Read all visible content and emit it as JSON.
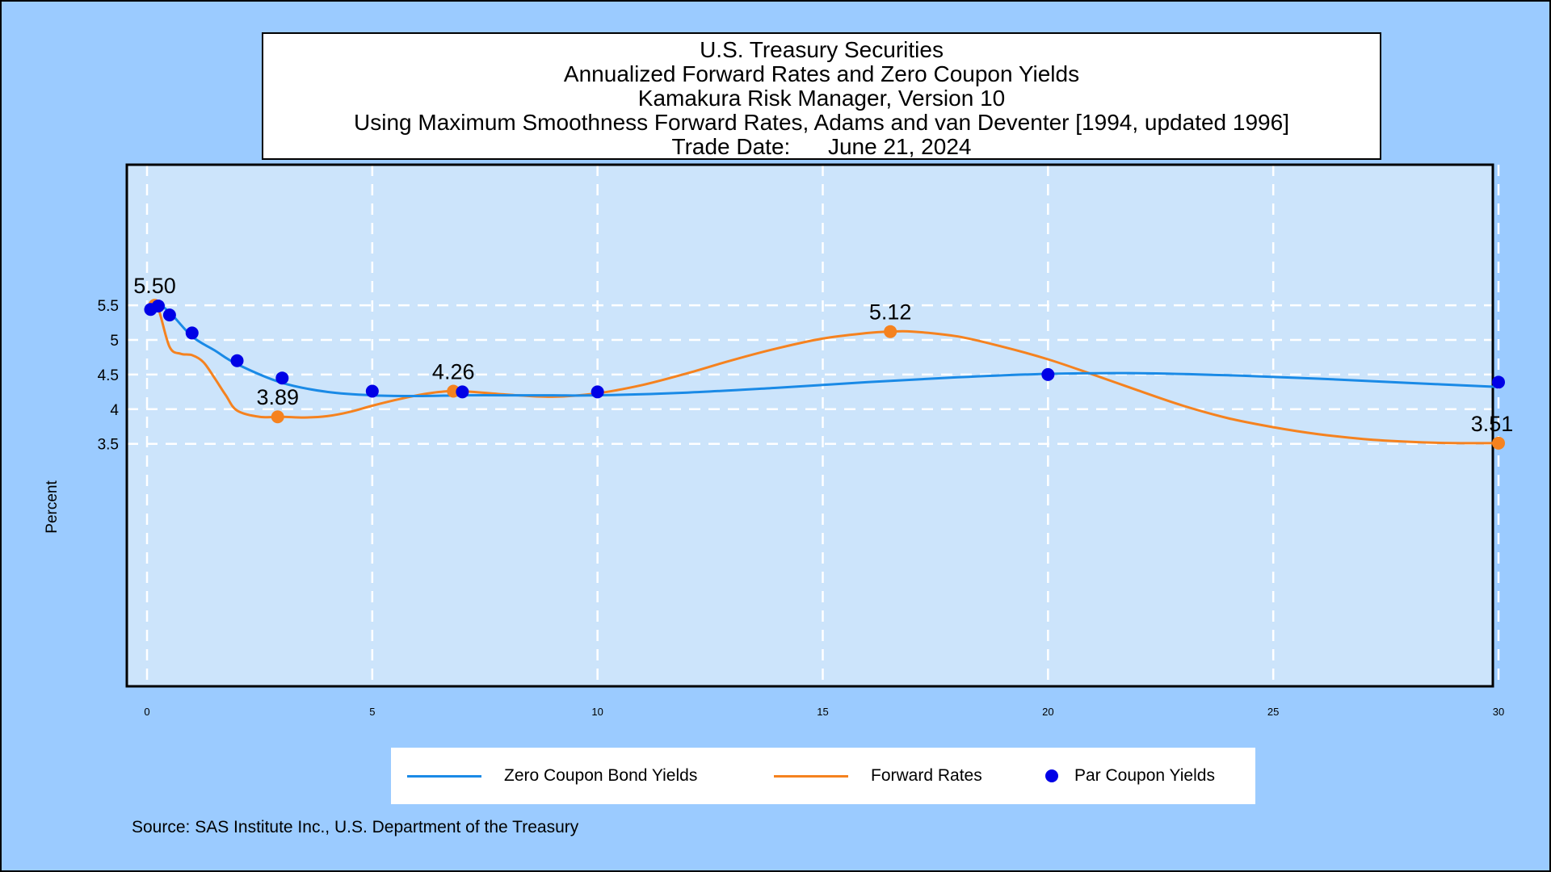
{
  "title_lines": [
    "U.S. Treasury Securities",
    "Annualized Forward Rates and Zero Coupon Yields",
    "Kamakura Risk Manager, Version 10",
    "Using Maximum Smoothness Forward Rates, Adams and van Deventer [1994, updated 1996]",
    "Trade Date:      June 21, 2024"
  ],
  "source": "Source: SAS Institute Inc., U.S. Department of the Treasury",
  "colors": {
    "background": "#9bcbff",
    "plot_area": "#cce4fb",
    "zero_coupon": "#1a8ae6",
    "forward": "#f5821f",
    "par": "#0000e6",
    "grid": "#ffffff"
  },
  "chart_data": {
    "type": "line",
    "ylabel": "Percent",
    "xlabel": "",
    "xlim": [
      0,
      30
    ],
    "ylim": [
      0,
      8.5
    ],
    "grid": true,
    "legend_position": "bottom",
    "x_ticks": [
      0,
      5,
      10,
      15,
      20,
      25,
      30
    ],
    "y_ticks": [
      3.5,
      4,
      4.5,
      5,
      5.5
    ],
    "y_tick_labels": [
      "3.5",
      "4",
      "4.5",
      "5",
      "5.5"
    ],
    "series": [
      {
        "name": "Zero Coupon Bond Yields",
        "kind": "line",
        "points": [
          [
            0.08,
            5.45
          ],
          [
            0.25,
            5.5
          ],
          [
            0.5,
            5.4
          ],
          [
            1,
            5.05
          ],
          [
            1.5,
            4.85
          ],
          [
            2,
            4.65
          ],
          [
            3,
            4.38
          ],
          [
            4,
            4.25
          ],
          [
            5,
            4.2
          ],
          [
            6,
            4.19
          ],
          [
            7,
            4.2
          ],
          [
            8,
            4.2
          ],
          [
            9,
            4.2
          ],
          [
            10,
            4.2
          ],
          [
            12,
            4.24
          ],
          [
            14,
            4.31
          ],
          [
            16,
            4.39
          ],
          [
            18,
            4.46
          ],
          [
            20,
            4.51
          ],
          [
            22,
            4.52
          ],
          [
            24,
            4.49
          ],
          [
            26,
            4.44
          ],
          [
            28,
            4.38
          ],
          [
            30,
            4.32
          ]
        ]
      },
      {
        "name": "Forward Rates",
        "kind": "line",
        "points": [
          [
            0.08,
            5.5
          ],
          [
            0.25,
            5.45
          ],
          [
            0.5,
            4.9
          ],
          [
            0.75,
            4.8
          ],
          [
            1,
            4.78
          ],
          [
            1.25,
            4.68
          ],
          [
            1.5,
            4.45
          ],
          [
            1.75,
            4.2
          ],
          [
            2,
            3.98
          ],
          [
            2.5,
            3.89
          ],
          [
            3,
            3.89
          ],
          [
            3.5,
            3.88
          ],
          [
            4,
            3.9
          ],
          [
            4.5,
            3.96
          ],
          [
            5,
            4.05
          ],
          [
            5.5,
            4.13
          ],
          [
            6,
            4.2
          ],
          [
            6.5,
            4.25
          ],
          [
            7,
            4.26
          ],
          [
            8,
            4.21
          ],
          [
            9,
            4.18
          ],
          [
            10,
            4.23
          ],
          [
            11,
            4.35
          ],
          [
            12,
            4.52
          ],
          [
            13,
            4.71
          ],
          [
            14,
            4.88
          ],
          [
            15,
            5.02
          ],
          [
            16,
            5.1
          ],
          [
            16.5,
            5.12
          ],
          [
            17,
            5.12
          ],
          [
            18,
            5.05
          ],
          [
            19,
            4.9
          ],
          [
            20,
            4.72
          ],
          [
            21,
            4.5
          ],
          [
            22,
            4.27
          ],
          [
            23,
            4.05
          ],
          [
            24,
            3.87
          ],
          [
            25,
            3.74
          ],
          [
            26,
            3.64
          ],
          [
            27,
            3.57
          ],
          [
            28,
            3.53
          ],
          [
            29,
            3.51
          ],
          [
            30,
            3.51
          ]
        ]
      },
      {
        "name": "Par Coupon Yields",
        "kind": "points",
        "points": [
          [
            0.08,
            5.44
          ],
          [
            0.25,
            5.49
          ],
          [
            0.5,
            5.36
          ],
          [
            1,
            5.1
          ],
          [
            2,
            4.7
          ],
          [
            3,
            4.45
          ],
          [
            5,
            4.26
          ],
          [
            7,
            4.25
          ],
          [
            10,
            4.25
          ],
          [
            20,
            4.5
          ],
          [
            30,
            4.39
          ]
        ]
      }
    ],
    "forward_markers": [
      [
        0.17,
        5.5
      ],
      [
        2.9,
        3.89
      ],
      [
        6.8,
        4.26
      ],
      [
        16.5,
        5.12
      ],
      [
        30,
        3.51
      ]
    ],
    "annotations": [
      {
        "x": 0.17,
        "y": 5.5,
        "label": "5.50"
      },
      {
        "x": 2.9,
        "y": 3.89,
        "label": "3.89"
      },
      {
        "x": 6.8,
        "y": 4.26,
        "label": "4.26"
      },
      {
        "x": 16.5,
        "y": 5.12,
        "label": "5.12"
      },
      {
        "x": 30,
        "y": 3.51,
        "label": "3.51"
      }
    ]
  }
}
